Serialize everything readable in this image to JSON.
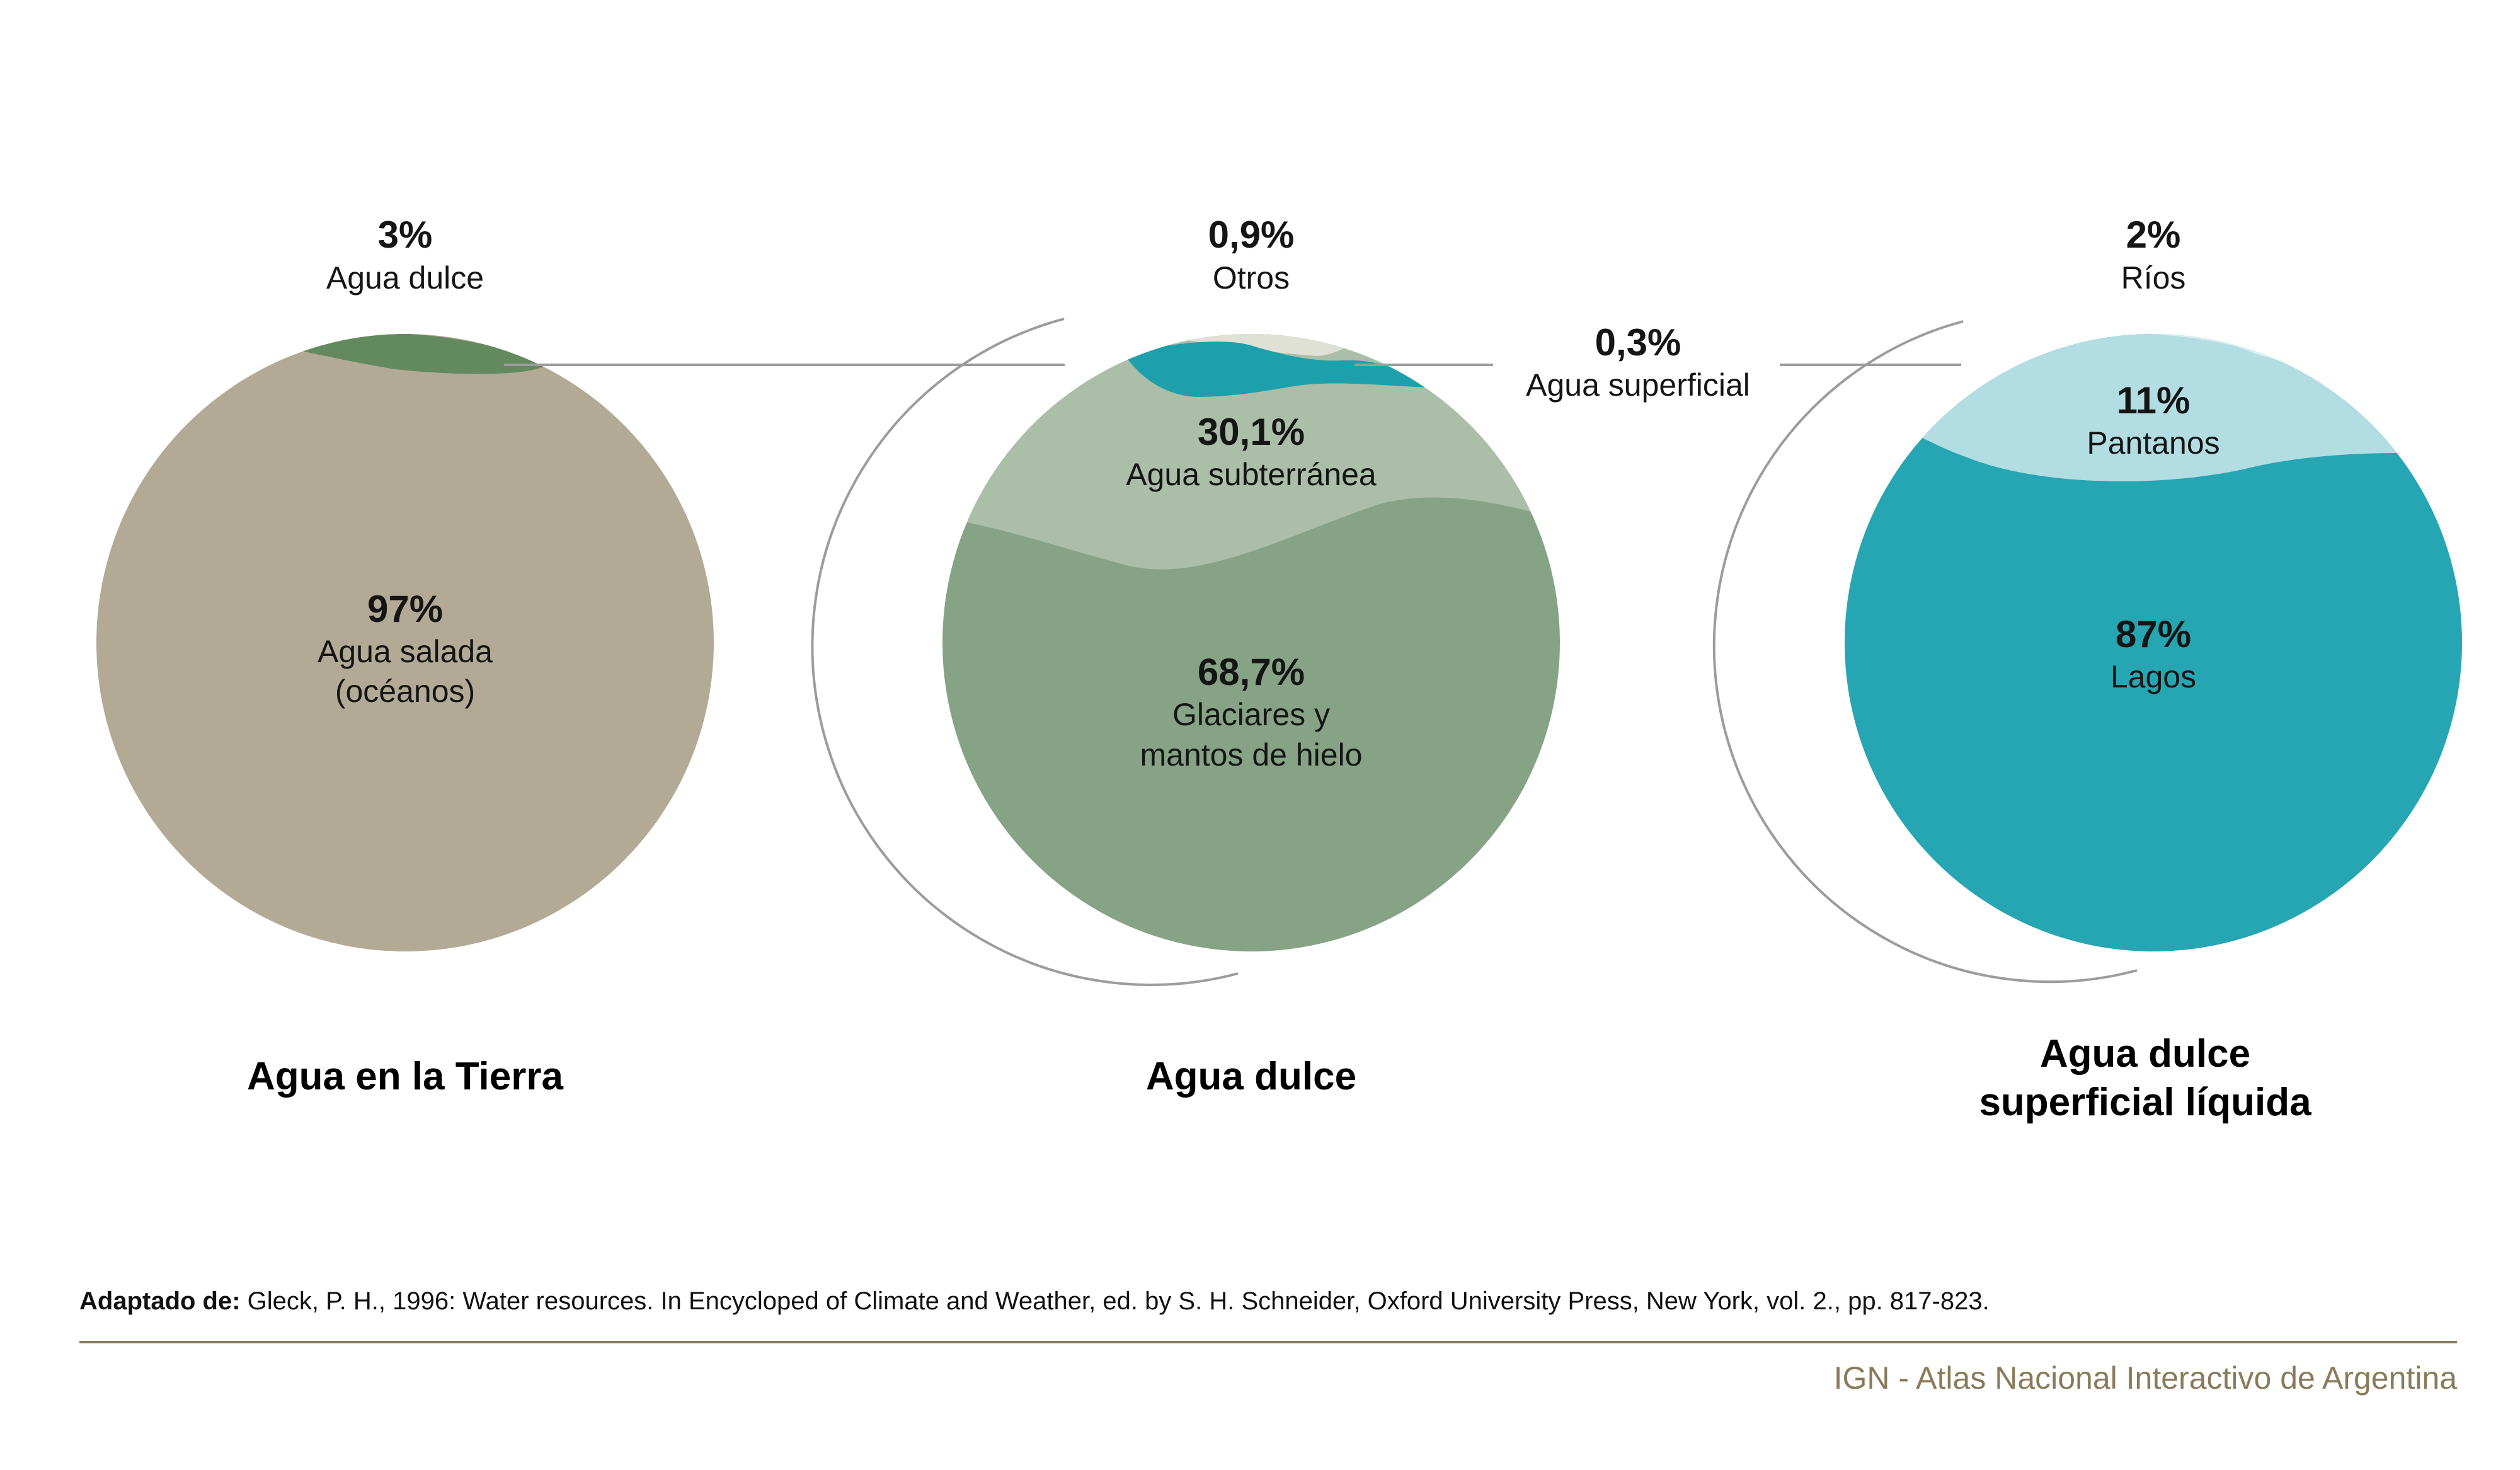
{
  "chart_data": [
    {
      "type": "pie",
      "title": "Agua en la Tierra",
      "slices": [
        {
          "label": "Agua dulce",
          "value": 3,
          "value_label": "3%",
          "color": "#638a5e"
        },
        {
          "label": "Agua salada (océanos)",
          "value": 97,
          "value_label": "97%",
          "color": "#b3aa96"
        }
      ]
    },
    {
      "type": "pie",
      "title": "Agua dulce",
      "slices": [
        {
          "label": "Otros",
          "value": 0.9,
          "value_label": "0,9%",
          "color": "#dfe0d6"
        },
        {
          "label": "Agua superficial",
          "value": 0.3,
          "value_label": "0,3%",
          "color": "#1ea0ac"
        },
        {
          "label": "Agua subterránea",
          "value": 30.1,
          "value_label": "30,1%",
          "color": "#aabea8"
        },
        {
          "label": "Glaciares y mantos de hielo",
          "value": 68.7,
          "value_label": "68,7%",
          "color": "#86a385"
        }
      ]
    },
    {
      "type": "pie",
      "title": "Agua dulce superficial líquida",
      "slices": [
        {
          "label": "Ríos",
          "value": 2,
          "value_label": "2%",
          "color": "#d7eef1"
        },
        {
          "label": "Pantanos",
          "value": 11,
          "value_label": "11%",
          "color": "#b1dde3"
        },
        {
          "label": "Lagos",
          "value": 87,
          "value_label": "87%",
          "color": "#26a6b3"
        }
      ]
    }
  ],
  "chart1": {
    "title": "Agua en la Tierra",
    "top_pct": "3%",
    "top_label": "Agua dulce",
    "main_pct": "97%",
    "main_label_1": "Agua salada",
    "main_label_2": "(océanos)"
  },
  "chart2": {
    "title": "Agua dulce",
    "top_pct": "0,9%",
    "top_label": "Otros",
    "surface_pct": "0,3%",
    "surface_label": "Agua superficial",
    "ground_pct": "30,1%",
    "ground_label": "Agua subterránea",
    "ice_pct": "68,7%",
    "ice_label_1": "Glaciares y",
    "ice_label_2": "mantos de hielo"
  },
  "chart3": {
    "title_1": "Agua dulce",
    "title_2": "superficial líquida",
    "top_pct": "2%",
    "top_label": "Ríos",
    "swamp_pct": "11%",
    "swamp_label": "Pantanos",
    "lakes_pct": "87%",
    "lakes_label": "Lagos"
  },
  "source": {
    "prefix": "Adaptado de:",
    "text": " Gleck, P. H., 1996: Water resources. In Encycloped of Climate and Weather, ed. by S. H. Schneider, Oxford University Press, New York, vol. 2., pp. 817-823."
  },
  "footer": "IGN - Atlas Nacional Interactivo de Argentina",
  "colors": {
    "salt": "#b3aa96",
    "fresh_earth": "#638a5e",
    "ice": "#86a385",
    "groundwater": "#aabea8",
    "surface": "#1ea0ac",
    "other": "#dfe0d6",
    "lakes": "#26a6b3",
    "swamps": "#b1dde3",
    "rivers": "#d7eef1",
    "footer": "#8a7a5a"
  }
}
